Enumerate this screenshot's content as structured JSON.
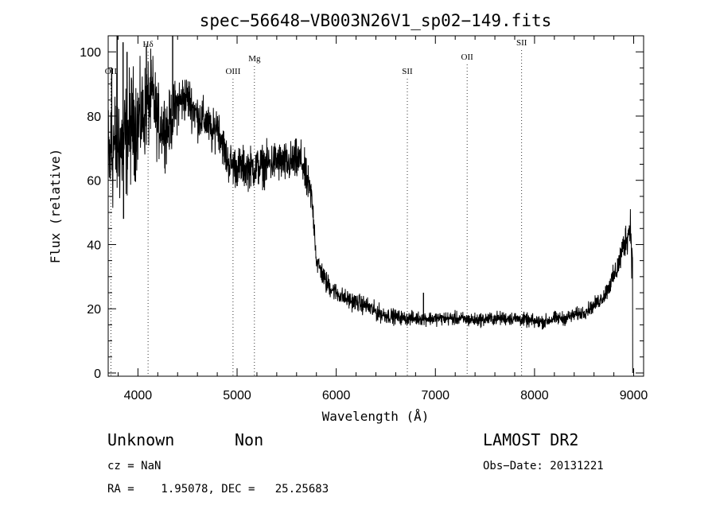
{
  "chart_data": {
    "type": "line",
    "title": "spec−56648−VB003N26V1_sp02−149.fits",
    "xlabel": "Wavelength (Å)",
    "ylabel": "Flux (relative)",
    "xlim": [
      3700,
      9100
    ],
    "ylim": [
      -1,
      105
    ],
    "xticks": [
      4000,
      5000,
      6000,
      7000,
      8000,
      9000
    ],
    "yticks": [
      0,
      20,
      40,
      60,
      80,
      100
    ],
    "xtick_labels": [
      "4000",
      "5000",
      "6000",
      "7000",
      "8000",
      "9000"
    ],
    "ytick_labels": [
      "0",
      "20",
      "40",
      "60",
      "80",
      "100"
    ],
    "grid": false,
    "spectrum_anchor": {
      "x": [
        3700,
        3750,
        3800,
        3850,
        3900,
        3950,
        4000,
        4050,
        4100,
        4150,
        4200,
        4300,
        4400,
        4500,
        4600,
        4700,
        4750,
        4800,
        4850,
        4900,
        5000,
        5100,
        5200,
        5300,
        5400,
        5500,
        5600,
        5650,
        5700,
        5750,
        5780,
        5800,
        5900,
        6000,
        6100,
        6200,
        6300,
        6400,
        6500,
        6600,
        6700,
        6800,
        6900,
        7000,
        7200,
        7400,
        7600,
        7800,
        8000,
        8100,
        8200,
        8300,
        8400,
        8500,
        8600,
        8700,
        8800,
        8850,
        8900,
        8950,
        8970,
        8990
      ],
      "y": [
        65,
        70,
        72,
        70,
        75,
        78,
        78,
        80,
        84,
        86,
        78,
        76,
        84,
        86,
        80,
        78,
        74,
        78,
        72,
        66,
        64,
        64,
        64,
        65,
        66,
        65,
        66,
        66,
        60,
        55,
        45,
        35,
        28,
        25,
        23,
        22,
        21,
        19,
        18,
        17.5,
        17,
        17,
        17,
        17,
        17,
        16.5,
        17,
        17,
        16,
        16,
        17,
        17,
        18,
        19,
        21,
        24,
        30,
        34,
        40,
        44,
        46,
        30
      ],
      "noise": [
        14,
        14,
        14,
        13,
        13,
        12,
        11,
        10,
        10,
        9,
        8,
        7,
        6,
        5,
        5,
        4.5,
        4.5,
        4.5,
        4.5,
        4.5,
        4.5,
        4.5,
        4.5,
        4.5,
        4.5,
        4.5,
        4.5,
        4.5,
        4.5,
        3.5,
        3,
        2.5,
        2.5,
        2,
        2,
        2,
        2,
        2,
        1.8,
        1.6,
        1.5,
        1.5,
        1.5,
        1.5,
        1.5,
        1.5,
        1.5,
        1.5,
        1.5,
        1.5,
        1.5,
        1.5,
        1.5,
        1.5,
        1.6,
        1.8,
        2.5,
        3,
        3.5,
        4,
        5,
        5
      ]
    },
    "spikes": [
      {
        "x": 3735,
        "y": 95
      },
      {
        "x": 3790,
        "y": 105
      },
      {
        "x": 3850,
        "y": 103
      },
      {
        "x": 3855,
        "y": 48
      },
      {
        "x": 3890,
        "y": 100
      },
      {
        "x": 4085,
        "y": 102
      },
      {
        "x": 4350,
        "y": 105
      },
      {
        "x": 6880,
        "y": 25
      }
    ],
    "lines": [
      {
        "label": "OII",
        "wavelength": 3727
      },
      {
        "label": "Hδ",
        "wavelength": 4102
      },
      {
        "label": "OIII",
        "wavelength": 4959
      },
      {
        "label": "Mg",
        "wavelength": 5175
      },
      {
        "label": "SII",
        "wavelength": 6717
      },
      {
        "label": "OII",
        "wavelength": 7320
      },
      {
        "label": "SII",
        "wavelength": 7870
      }
    ]
  },
  "info": {
    "classification": "Unknown",
    "subclass": "Non",
    "survey": "LAMOST DR2",
    "cz": "cz = NaN",
    "obs_date": "Obs−Date: 20131221",
    "coords": "RA =    1.95078, DEC =   25.25683"
  }
}
